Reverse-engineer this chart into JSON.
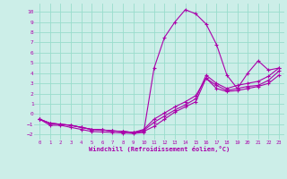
{
  "xlabel": "Windchill (Refroidissement éolien,°C)",
  "bg_color": "#cceee8",
  "grid_color": "#99ddcc",
  "line_color": "#aa00aa",
  "xlim": [
    -0.5,
    23.5
  ],
  "ylim": [
    -2.5,
    10.8
  ],
  "xticks": [
    0,
    1,
    2,
    3,
    4,
    5,
    6,
    7,
    8,
    9,
    10,
    11,
    12,
    13,
    14,
    15,
    16,
    17,
    18,
    19,
    20,
    21,
    22,
    23
  ],
  "yticks": [
    -2,
    -1,
    0,
    1,
    2,
    3,
    4,
    5,
    6,
    7,
    8,
    9,
    10
  ],
  "line1_x": [
    0,
    1,
    2,
    3,
    4,
    5,
    6,
    7,
    8,
    9,
    10,
    11,
    12,
    13,
    14,
    15,
    16,
    17,
    18,
    19,
    20,
    21,
    22,
    23
  ],
  "line1_y": [
    -0.5,
    -1.1,
    -1.1,
    -1.3,
    -1.5,
    -1.7,
    -1.75,
    -1.8,
    -1.85,
    -1.9,
    -1.8,
    4.5,
    7.5,
    9.0,
    10.2,
    9.8,
    8.8,
    6.8,
    3.8,
    2.5,
    4.0,
    5.2,
    4.3,
    4.5
  ],
  "line2_x": [
    0,
    1,
    2,
    3,
    4,
    5,
    6,
    7,
    8,
    9,
    10,
    11,
    12,
    13,
    14,
    15,
    16,
    17,
    18,
    19,
    20,
    21,
    22,
    23
  ],
  "line2_y": [
    -0.5,
    -0.9,
    -1.0,
    -1.1,
    -1.3,
    -1.5,
    -1.55,
    -1.65,
    -1.7,
    -1.8,
    -1.7,
    -1.2,
    -0.5,
    0.2,
    0.7,
    1.2,
    3.5,
    2.8,
    2.3,
    2.5,
    2.7,
    2.8,
    3.3,
    4.2
  ],
  "line3_x": [
    0,
    1,
    2,
    3,
    4,
    5,
    6,
    7,
    8,
    9,
    10,
    11,
    12,
    13,
    14,
    15,
    16,
    17,
    18,
    19,
    20,
    21,
    22,
    23
  ],
  "line3_y": [
    -0.5,
    -0.9,
    -1.0,
    -1.1,
    -1.3,
    -1.5,
    -1.55,
    -1.65,
    -1.7,
    -1.8,
    -1.6,
    -0.8,
    -0.2,
    0.4,
    0.9,
    1.5,
    3.8,
    3.0,
    2.5,
    2.8,
    3.0,
    3.2,
    3.7,
    4.5
  ],
  "line4_x": [
    0,
    1,
    2,
    3,
    4,
    5,
    6,
    7,
    8,
    9,
    10,
    11,
    12,
    13,
    14,
    15,
    16,
    17,
    18,
    19,
    20,
    21,
    22,
    23
  ],
  "line4_y": [
    -0.5,
    -0.9,
    -1.0,
    -1.1,
    -1.3,
    -1.5,
    -1.55,
    -1.65,
    -1.7,
    -1.8,
    -1.5,
    -0.5,
    0.1,
    0.7,
    1.2,
    1.8,
    3.5,
    2.5,
    2.2,
    2.3,
    2.5,
    2.7,
    3.0,
    3.8
  ]
}
